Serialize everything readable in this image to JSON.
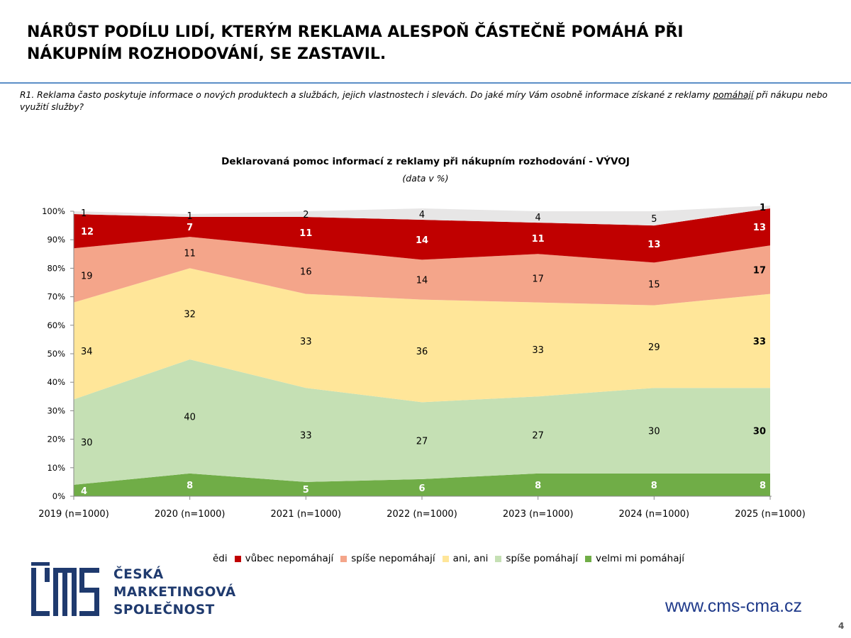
{
  "header": {
    "title_line1": "NÁRŮST PODÍLU LIDÍ, KTERÝM REKLAMA ALESPOŇ ČÁSTEČNĚ POMÁHÁ PŘI",
    "title_line2": "NÁKUPNÍM ROZHODOVÁNÍ, SE ZASTAVIL."
  },
  "question": {
    "text_before": "R1. Reklama často poskytuje informace o nových produktech a službách, jejich vlastnostech i slevách. Do jaké míry Vám osobně informace získané z reklamy ",
    "underlined": "pomáhají",
    "text_after": " při nákupu nebo využití služby?"
  },
  "chart_data": {
    "type": "area",
    "stacked": true,
    "title": "Deklarovaná pomoc informací z reklamy při nákupním rozhodování - VÝVOJ",
    "subtitle": "(data v %)",
    "categories": [
      "2019 (n=1000)",
      "2020 (n=1000)",
      "2021 (n=1000)",
      "2022 (n=1000)",
      "2023 (n=1000)",
      "2024 (n=1000)",
      "2025 (n=1000)"
    ],
    "y_ticks": [
      "0%",
      "10%",
      "20%",
      "30%",
      "40%",
      "50%",
      "60%",
      "70%",
      "80%",
      "90%",
      "100%"
    ],
    "ylim": [
      0,
      100
    ],
    "series": [
      {
        "name": "velmi mi pomáhají",
        "color": "#70ad47",
        "label_color": "#ffffff",
        "label_bold": true,
        "values": [
          4,
          8,
          5,
          6,
          8,
          8,
          8
        ]
      },
      {
        "name": "spíše pomáhají",
        "color": "#c5e0b4",
        "label_color": "#000000",
        "label_bold": false,
        "values": [
          30,
          40,
          33,
          27,
          27,
          30,
          30
        ]
      },
      {
        "name": "ani, ani",
        "color": "#ffe699",
        "label_color": "#000000",
        "label_bold": false,
        "values": [
          34,
          32,
          33,
          36,
          33,
          29,
          33
        ]
      },
      {
        "name": "spíše nepomáhají",
        "color": "#f4a58a",
        "label_color": "#000000",
        "label_bold": false,
        "values": [
          19,
          11,
          16,
          14,
          17,
          15,
          17
        ]
      },
      {
        "name": "vůbec nepomáhají",
        "color": "#c00000",
        "label_color": "#ffffff",
        "label_bold": true,
        "values": [
          12,
          7,
          11,
          14,
          11,
          13,
          13
        ]
      },
      {
        "name": "ědi",
        "color": "#e7e6e6",
        "label_color": "#000000",
        "label_bold": false,
        "values": [
          1,
          1,
          2,
          4,
          4,
          5,
          1
        ]
      }
    ],
    "legend_order": [
      "ědi",
      "vůbec nepomáhají",
      "spíše nepomáhají",
      "ani, ani",
      "spíše pomáhají",
      "velmi mi pomáhají"
    ],
    "legend_position": "bottom",
    "grid": false
  },
  "logo": {
    "line1": "ČESKÁ",
    "line2": "MARKETINGOVÁ",
    "line3": "SPOLEČNOST",
    "color": "#1f3a6e"
  },
  "footer": {
    "url": "www.cms-cma.cz",
    "page_number": "4"
  }
}
